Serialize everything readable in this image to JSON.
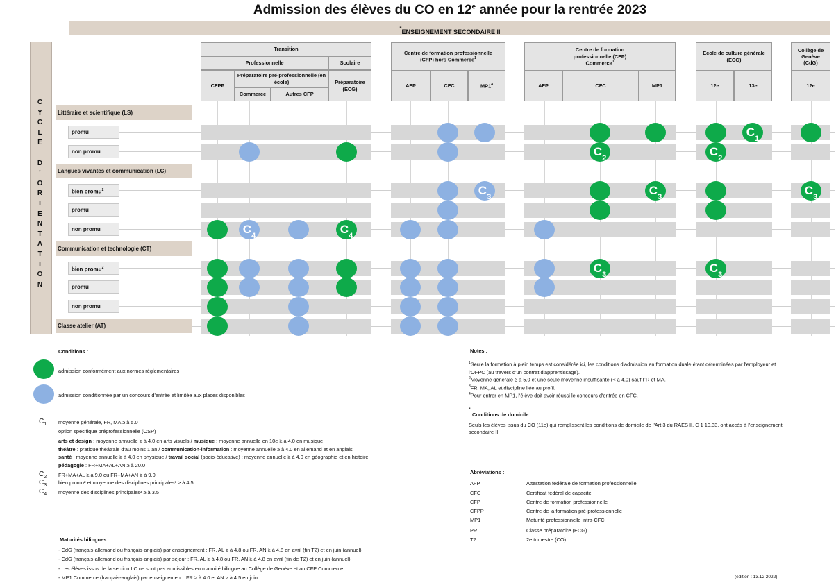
{
  "title": {
    "main": "Admission des élèves du CO en 12",
    "sup": "e",
    "rest": " année pour la rentrée 2023"
  },
  "banner": {
    "star": "*",
    "text": "ENSEIGNEMENT SECONDAIRE II"
  },
  "side_label": [
    "C",
    "Y",
    "C",
    "L",
    "E",
    "",
    "D",
    "'",
    "O",
    "R",
    "I",
    "E",
    "N",
    "T",
    "A",
    "T",
    "I",
    "O",
    "N"
  ],
  "headers": {
    "transition": "Transition",
    "professionnelle": "Professionnelle",
    "scolaire": "Scolaire",
    "preparatoire": "Préparatoire pré-professionnelle (en école)",
    "cfpp": "CFPP",
    "commerce": "Commerce",
    "autres_cfp": "Autres CFP",
    "prep_ecg": "Préparatoire (ECG)",
    "cfp_hors": "Centre de formation professionnelle (CFP) hors Commerce",
    "cfp_hors_sup": "1",
    "cfp_com": "Centre de formation professionnelle (CFP) Commerce",
    "cfp_com_sup": "1",
    "ecg": "Ecole de culture générale (ECG)",
    "cdg": "Collège de Genève (CdG)",
    "afp": "AFP",
    "cfc": "CFC",
    "mp1": "MP1",
    "mp1_sup": "4",
    "afp2": "AFP",
    "cfc2": "CFC",
    "mp1b": "MP1",
    "e12": "12e",
    "e13": "13e",
    "c12": "12e"
  },
  "sections": {
    "ls": "Littéraire et scientifique (LS)",
    "lc": "Langues vivantes et communication (LC)",
    "ct": "Communication et technologie (CT)",
    "at": "Classe atelier (AT)"
  },
  "rows": {
    "ls_promu": "promu",
    "ls_non": "non promu",
    "lc_bien": "bien promu",
    "lc_bien_sup": "2",
    "lc_promu": "promu",
    "lc_non": "non promu",
    "ct_bien": "bien promu",
    "ct_bien_sup": "2",
    "ct_promu": "promu",
    "ct_non": "non promu"
  },
  "dot_labels": {
    "c1": "C",
    "c1s": "1",
    "c2": "C",
    "c2s": "2",
    "c3": "C",
    "c3s": "3",
    "c4": "C",
    "c4s": "4"
  },
  "colors": {
    "green": "#0eaa4a",
    "blue": "#8db1e2",
    "beige": "#ddd3c8"
  },
  "conditions": {
    "title": "Conditions :",
    "green_text": "admission conformément aux normes réglementaires",
    "blue_text": "admission conditionnée par un concours d'entrée et limitée aux places disponibles",
    "c1_1": "moyenne générale, FR, MA ≥ à 5.0",
    "c1_2": "option spécifique préprofessionnelle (OSP)",
    "c1_3a": "arts et design",
    "c1_3b": " : moyenne annuelle ≥ à 4.0 en arts visuels / ",
    "c1_3c": "musique",
    "c1_3d": " : moyenne annuelle en 10e ≥ à 4.0 en musique",
    "c1_4a": "théâtre",
    "c1_4b": " : pratique théâtrale d'au moins 1 an / ",
    "c1_4c": "communication-information",
    "c1_4d": " : moyenne annuelle ≥ à 4.0 en allemand et en anglais",
    "c1_5a": "santé",
    "c1_5b": " : moyenne annuelle ≥ à 4.0 en physique / ",
    "c1_5c": "travail social",
    "c1_5d": " (socio-éducative) : moyenne annuelle ≥ à 4.0 en géographie et en histoire",
    "c1_6a": "pédagogie",
    "c1_6b": " :  FR+MA+AL+AN ≥ à 20.0",
    "c2": "FR+MA+AL ≥ à 9.0 ou FR+MA+AN ≥ à 9.0",
    "c3": "bien promu² et moyenne des disciplines principales³ ≥ à 4.5",
    "c4": "moyenne des disciplines principales³ ≥ à 3.5"
  },
  "maturites": {
    "title": "Maturités bilingues",
    "l1": "- CdG (français-allemand ou français-anglais) par enseignement : FR, AL ≥ à 4.8 ou FR, AN ≥ à 4.8 en avril (fin T2) et en juin (annuel).",
    "l2": "- CdG (français-allemand ou français-anglais) par séjour : FR, AL ≥ à 4.8 ou FR, AN ≥ à 4.8 en avril (fin de T2) et en juin (annuel).",
    "l3": "- Les élèves issus de la section LC ne sont pas admissibles en maturité bilingue au Collège de Genève et au CFP Commerce.",
    "l4": "- MP1 Commerce (français-anglais) par enseignement : FR ≥ à 4.0 et AN ≥ à 4.5 en juin."
  },
  "notes": {
    "title": "Notes :",
    "n1a": "Seule la formation à plein temps est considérée ici, les conditions d'admission en formation duale étant déterminées par l'employeur et",
    "n1b": "l'OFPC (au travers d'un contrat d'apprentissage).",
    "n2": "Moyenne générale ≥ à 5.0 et une seule moyenne insuffisante (< à 4.0) sauf FR et MA.",
    "n3": "FR, MA, AL et discipline liée au profil.",
    "n4": "Pour entrer en MP1, l'élève doit avoir réussi le concours d'entrée en CFC.",
    "dom_star": "*",
    "dom_title": "Conditions de domicile :",
    "dom_a": "Seuls les élèves issus du CO (11e)  qui remplissent les conditions de domicile de l'Art.3 du RAES II, C 1 10.33, ont accès à l'enseignement",
    "dom_b": "secondaire II."
  },
  "abbreviations": {
    "title": "Abréviations :",
    "items": [
      {
        "k": "AFP",
        "v": "Attestation fédérale de formation professionnelle"
      },
      {
        "k": "CFC",
        "v": "Certificat fédéral de capacité"
      },
      {
        "k": "CFP",
        "v": "Centre de formation professionnelle"
      },
      {
        "k": "CFPP",
        "v": "Centre de la formation pré-professionnelle"
      },
      {
        "k": "MP1",
        "v": "Maturité professionnelle intra-CFC"
      },
      {
        "k": "PR",
        "v": "Classe préparatoire (ECG)"
      },
      {
        "k": "T2",
        "v": "2e trimestre (CO)"
      }
    ]
  },
  "edition": "(édition : 13.12 2022)"
}
